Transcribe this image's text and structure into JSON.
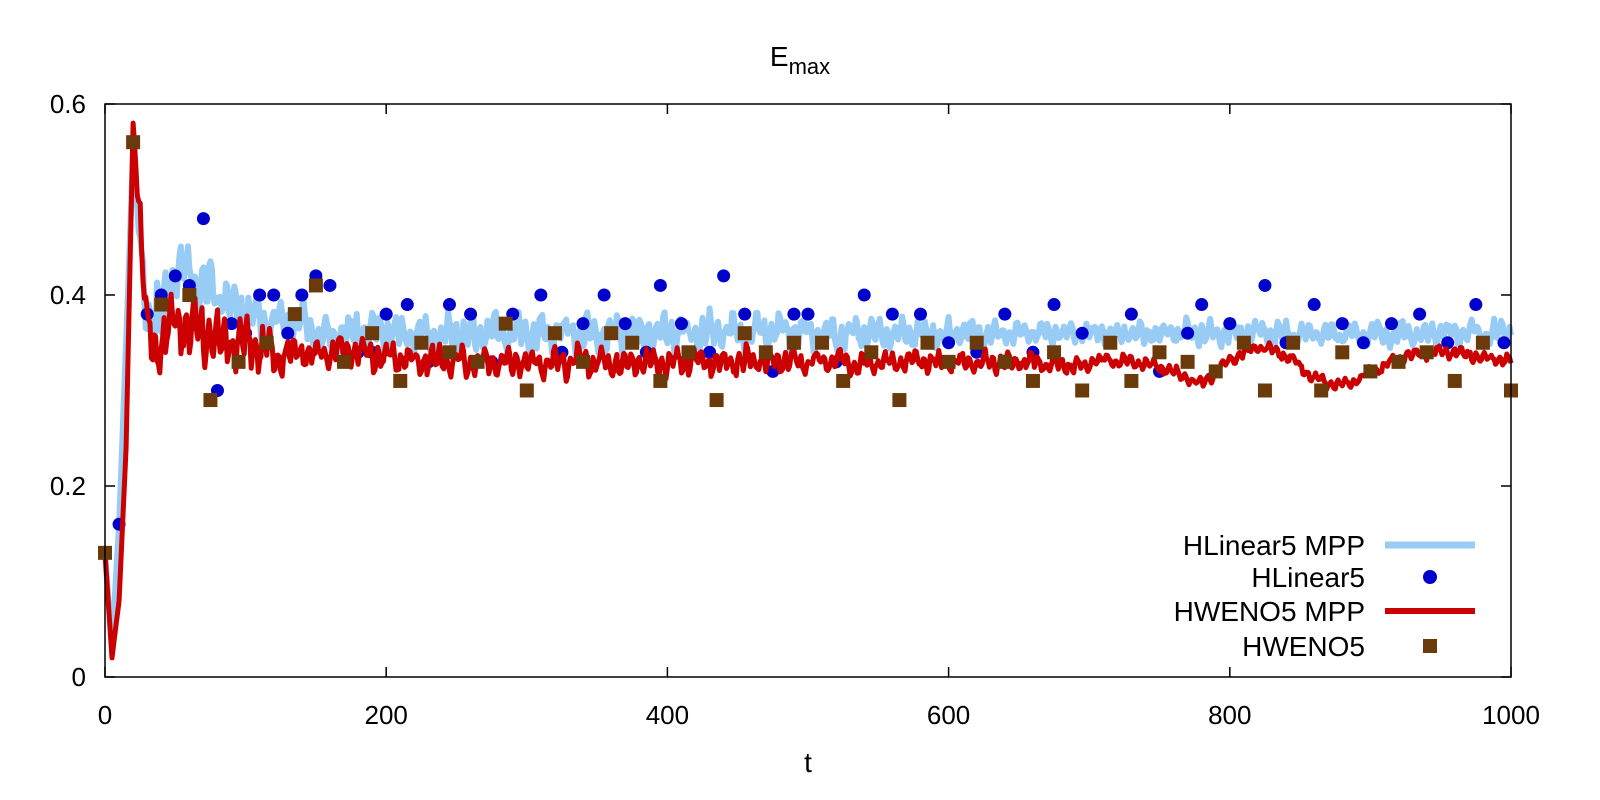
{
  "chart_data": {
    "type": "line",
    "title": "E",
    "title_subscript": "max",
    "xlabel": "t",
    "ylabel": "",
    "xlim": [
      0,
      1000
    ],
    "ylim": [
      0,
      0.6
    ],
    "xticks": [
      "0",
      "200",
      "400",
      "600",
      "800",
      "1000"
    ],
    "yticks": [
      "0",
      "0.2",
      "0.4",
      "0.6"
    ],
    "grid": false,
    "legend_position": "bottom-right",
    "series": [
      {
        "name": "HLinear5 MPP",
        "style": "line",
        "color": "#99ccf5",
        "x": [
          0,
          5,
          10,
          15,
          20,
          25,
          30,
          35,
          40,
          45,
          50,
          60,
          70,
          80,
          90,
          100,
          120,
          140,
          160,
          180,
          200,
          250,
          300,
          350,
          400,
          450,
          500,
          550,
          600,
          650,
          700,
          750,
          800,
          850,
          900,
          950,
          1000
        ],
        "y": [
          0.13,
          0.03,
          0.16,
          0.35,
          0.55,
          0.45,
          0.38,
          0.36,
          0.38,
          0.4,
          0.42,
          0.43,
          0.41,
          0.4,
          0.39,
          0.38,
          0.37,
          0.37,
          0.36,
          0.36,
          0.36,
          0.36,
          0.36,
          0.36,
          0.36,
          0.36,
          0.36,
          0.36,
          0.36,
          0.36,
          0.36,
          0.36,
          0.36,
          0.36,
          0.36,
          0.36,
          0.36
        ],
        "amplitude": [
          0,
          0,
          0,
          0,
          0,
          0.04,
          0.06,
          0.07,
          0.08,
          0.08,
          0.07,
          0.06,
          0.06,
          0.06,
          0.055,
          0.05,
          0.045,
          0.04,
          0.04,
          0.04,
          0.04,
          0.04,
          0.04,
          0.04,
          0.04,
          0.04,
          0.035,
          0.03,
          0.025,
          0.025,
          0.025,
          0.025,
          0.025,
          0.025,
          0.025,
          0.025,
          0.025
        ]
      },
      {
        "name": "HLinear5",
        "style": "points",
        "marker": "circle",
        "color": "#0000cc",
        "x": [
          10,
          20,
          30,
          40,
          50,
          60,
          70,
          80,
          90,
          100,
          110,
          120,
          130,
          140,
          150,
          160,
          170,
          180,
          190,
          200,
          215,
          230,
          245,
          260,
          275,
          290,
          310,
          325,
          340,
          355,
          370,
          385,
          395,
          410,
          430,
          440,
          455,
          475,
          490,
          500,
          520,
          540,
          560,
          580,
          600,
          620,
          640,
          660,
          675,
          695,
          715,
          730,
          750,
          770,
          780,
          800,
          825,
          840,
          860,
          880,
          895,
          915,
          935,
          955,
          975,
          995
        ],
        "y": [
          0.16,
          0.56,
          0.38,
          0.4,
          0.42,
          0.41,
          0.48,
          0.3,
          0.37,
          0.36,
          0.4,
          0.4,
          0.36,
          0.4,
          0.42,
          0.41,
          0.33,
          0.34,
          0.34,
          0.38,
          0.39,
          0.33,
          0.39,
          0.38,
          0.33,
          0.38,
          0.4,
          0.34,
          0.37,
          0.4,
          0.37,
          0.34,
          0.41,
          0.37,
          0.34,
          0.42,
          0.38,
          0.32,
          0.38,
          0.38,
          0.33,
          0.4,
          0.38,
          0.38,
          0.35,
          0.34,
          0.38,
          0.34,
          0.39,
          0.36,
          0.35,
          0.38,
          0.32,
          0.36,
          0.39,
          0.37,
          0.41,
          0.35,
          0.39,
          0.37,
          0.35,
          0.37,
          0.38,
          0.35,
          0.39,
          0.35
        ]
      },
      {
        "name": "HWENO5 MPP",
        "style": "line",
        "color": "#cc0000",
        "x": [
          0,
          5,
          10,
          15,
          20,
          25,
          30,
          35,
          40,
          50,
          60,
          70,
          80,
          90,
          100,
          120,
          140,
          160,
          180,
          200,
          250,
          300,
          350,
          400,
          450,
          500,
          550,
          600,
          650,
          700,
          740,
          760,
          780,
          800,
          820,
          840,
          860,
          880,
          900,
          920,
          940,
          960,
          980,
          1000
        ],
        "y": [
          0.13,
          0.02,
          0.08,
          0.24,
          0.58,
          0.48,
          0.36,
          0.34,
          0.36,
          0.37,
          0.37,
          0.36,
          0.35,
          0.35,
          0.35,
          0.34,
          0.34,
          0.34,
          0.34,
          0.335,
          0.33,
          0.33,
          0.33,
          0.33,
          0.33,
          0.33,
          0.33,
          0.33,
          0.33,
          0.325,
          0.33,
          0.325,
          0.31,
          0.33,
          0.34,
          0.335,
          0.315,
          0.31,
          0.32,
          0.33,
          0.335,
          0.34,
          0.34,
          0.335
        ],
        "amplitude": [
          0,
          0,
          0,
          0,
          0,
          0.05,
          0.07,
          0.08,
          0.07,
          0.07,
          0.07,
          0.07,
          0.06,
          0.05,
          0.05,
          0.045,
          0.04,
          0.035,
          0.03,
          0.03,
          0.03,
          0.03,
          0.03,
          0.03,
          0.03,
          0.025,
          0.025,
          0.02,
          0.02,
          0.015,
          0.012,
          0.012,
          0.012,
          0.012,
          0.012,
          0.012,
          0.012,
          0.012,
          0.012,
          0.012,
          0.012,
          0.012,
          0.012,
          0.012
        ]
      },
      {
        "name": "HWENO5",
        "style": "points",
        "marker": "square",
        "color": "#6b3a0a",
        "x": [
          0,
          20,
          40,
          60,
          75,
          95,
          115,
          135,
          150,
          170,
          190,
          210,
          225,
          245,
          265,
          285,
          300,
          320,
          340,
          360,
          375,
          395,
          415,
          435,
          455,
          470,
          490,
          510,
          525,
          545,
          565,
          585,
          600,
          620,
          640,
          660,
          675,
          695,
          715,
          730,
          750,
          770,
          790,
          810,
          825,
          845,
          865,
          880,
          900,
          920,
          940,
          960,
          980,
          1000
        ],
        "y": [
          0.13,
          0.56,
          0.39,
          0.4,
          0.29,
          0.33,
          0.35,
          0.38,
          0.41,
          0.33,
          0.36,
          0.31,
          0.35,
          0.34,
          0.33,
          0.37,
          0.3,
          0.36,
          0.33,
          0.36,
          0.35,
          0.31,
          0.34,
          0.29,
          0.36,
          0.34,
          0.35,
          0.35,
          0.31,
          0.34,
          0.29,
          0.35,
          0.33,
          0.35,
          0.33,
          0.31,
          0.34,
          0.3,
          0.35,
          0.31,
          0.34,
          0.33,
          0.32,
          0.35,
          0.3,
          0.35,
          0.3,
          0.34,
          0.32,
          0.33,
          0.34,
          0.31,
          0.35,
          0.3
        ]
      }
    ]
  }
}
